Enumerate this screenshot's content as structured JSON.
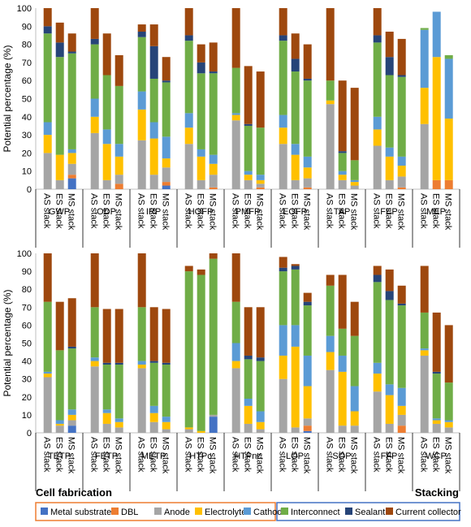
{
  "chart_data": {
    "type": "bar",
    "stacked": true,
    "ylabel": "Potential percentage (%)",
    "ylim": [
      0,
      100
    ],
    "yticks": [
      0,
      10,
      20,
      30,
      40,
      50,
      60,
      70,
      80,
      90,
      100
    ],
    "stack_labels": [
      "AS stack",
      "ES stack",
      "MS stack"
    ],
    "group_titles": {
      "fabrication": "Cell fabrication",
      "stacking": "Stacking"
    },
    "legend": {
      "fabrication": [
        {
          "name": "Metal substrate",
          "color": "#4472c4"
        },
        {
          "name": "DBL",
          "color": "#ed7d31"
        },
        {
          "name": "Anode",
          "color": "#a5a5a5"
        },
        {
          "name": "Electrolyte",
          "color": "#ffc000"
        },
        {
          "name": "Cathode",
          "color": "#5b9bd5"
        }
      ],
      "stacking": [
        {
          "name": "Interconnect",
          "color": "#70ad47"
        },
        {
          "name": "Sealant",
          "color": "#264478"
        },
        {
          "name": "Current collector",
          "color": "#9e480e"
        }
      ]
    },
    "panels": [
      {
        "categories": [
          "GWP",
          "ODP",
          "IRP",
          "HOFP",
          "PMFP",
          "EOFP",
          "TAP",
          "FEP",
          "MEP"
        ],
        "data": [
          [
            [
              0,
              0,
              20,
              10,
              7,
              49,
              4,
              10
            ],
            [
              0,
              0,
              5,
              14,
              0,
              54,
              8,
              11
            ],
            [
              6,
              2,
              6,
              6,
              2,
              53,
              1,
              10
            ]
          ],
          [
            [
              0,
              0,
              31,
              9,
              10,
              30,
              3,
              17
            ],
            [
              0,
              0,
              5,
              20,
              8,
              30,
              0,
              23
            ],
            [
              0,
              3,
              5,
              10,
              7,
              32,
              0,
              17
            ]
          ],
          [
            [
              0,
              0,
              27,
              17,
              10,
              30,
              3,
              4
            ],
            [
              0,
              0,
              8,
              20,
              9,
              24,
              18,
              12
            ],
            [
              2,
              2,
              8,
              5,
              12,
              30,
              1,
              13
            ]
          ],
          [
            [
              0,
              0,
              25,
              9,
              8,
              40,
              3,
              15
            ],
            [
              0,
              0,
              5,
              13,
              4,
              42,
              6,
              10
            ],
            [
              0,
              1,
              7,
              6,
              5,
              45,
              1,
              16
            ]
          ],
          [
            [
              0,
              0,
              38,
              3,
              1,
              25,
              0,
              33
            ],
            [
              0,
              0,
              5,
              3,
              2,
              25,
              1,
              32
            ],
            [
              0,
              1,
              2,
              2,
              3,
              26,
              0,
              31
            ]
          ],
          [
            [
              0,
              0,
              25,
              9,
              7,
              41,
              3,
              15
            ],
            [
              0,
              0,
              5,
              14,
              6,
              40,
              7,
              14
            ],
            [
              0,
              1,
              5,
              6,
              6,
              42,
              1,
              19
            ]
          ],
          [
            [
              0,
              0,
              47,
              2,
              0,
              11,
              0,
              40
            ],
            [
              0,
              0,
              5,
              3,
              2,
              10,
              1,
              39
            ],
            [
              0,
              0,
              2,
              2,
              1,
              11,
              0,
              40
            ]
          ],
          [
            [
              0,
              0,
              24,
              9,
              7,
              41,
              4,
              15
            ],
            [
              0,
              0,
              5,
              13,
              5,
              40,
              10,
              14
            ],
            [
              0,
              1,
              6,
              6,
              5,
              44,
              1,
              20
            ]
          ],
          [
            [
              0,
              0,
              36,
              20,
              32,
              1,
              0,
              0
            ],
            [
              0,
              5,
              0,
              68,
              25,
              0,
              0,
              0
            ],
            [
              0,
              5,
              0,
              34,
              33,
              2,
              0,
              0
            ]
          ]
        ]
      },
      {
        "categories": [
          "TETP",
          "FETP",
          "METP",
          "HTPc",
          "HTPnc",
          "LOP",
          "SOP",
          "FFP",
          "WCP"
        ],
        "data": [
          [
            [
              0,
              0,
              31,
              2,
              1,
              39,
              0,
              27
            ],
            [
              0,
              0,
              4,
              1,
              2,
              39,
              0,
              27
            ],
            [
              4,
              0,
              3,
              3,
              3,
              34,
              1,
              27
            ]
          ],
          [
            [
              0,
              0,
              37,
              3,
              2,
              28,
              0,
              30
            ],
            [
              0,
              0,
              5,
              6,
              2,
              25,
              1,
              30
            ],
            [
              0,
              0,
              3,
              3,
              2,
              30,
              1,
              30
            ]
          ],
          [
            [
              0,
              0,
              36,
              2,
              2,
              30,
              0,
              30
            ],
            [
              0,
              0,
              6,
              5,
              4,
              24,
              1,
              30
            ],
            [
              0,
              0,
              2,
              4,
              3,
              29,
              1,
              30
            ]
          ],
          [
            [
              0,
              0,
              2,
              1,
              0,
              87,
              0,
              3
            ],
            [
              0,
              0,
              0,
              1,
              0,
              87,
              0,
              3
            ],
            [
              9,
              0,
              1,
              0,
              0,
              87,
              0,
              3
            ]
          ],
          [
            [
              0,
              0,
              36,
              4,
              10,
              23,
              0,
              27
            ],
            [
              0,
              0,
              5,
              10,
              4,
              22,
              2,
              27
            ],
            [
              0,
              0,
              2,
              4,
              6,
              28,
              2,
              28
            ]
          ],
          [
            [
              0,
              0,
              30,
              13,
              17,
              30,
              2,
              6
            ],
            [
              0,
              0,
              3,
              45,
              12,
              31,
              2,
              1
            ],
            [
              1,
              3,
              4,
              18,
              17,
              28,
              2,
              5
            ]
          ],
          [
            [
              0,
              0,
              35,
              10,
              9,
              28,
              0,
              6
            ],
            [
              0,
              0,
              4,
              30,
              9,
              15,
              0,
              30
            ],
            [
              0,
              0,
              4,
              8,
              14,
              28,
              0,
              19
            ]
          ],
          [
            [
              0,
              0,
              23,
              10,
              6,
              45,
              4,
              5
            ],
            [
              0,
              0,
              5,
              16,
              6,
              47,
              5,
              12
            ],
            [
              0,
              4,
              6,
              5,
              10,
              46,
              1,
              10
            ]
          ],
          [
            [
              0,
              0,
              43,
              3,
              1,
              20,
              0,
              26
            ],
            [
              0,
              0,
              5,
              2,
              1,
              25,
              1,
              33
            ],
            [
              0,
              0,
              3,
              3,
              1,
              21,
              0,
              32
            ]
          ]
        ]
      }
    ]
  }
}
